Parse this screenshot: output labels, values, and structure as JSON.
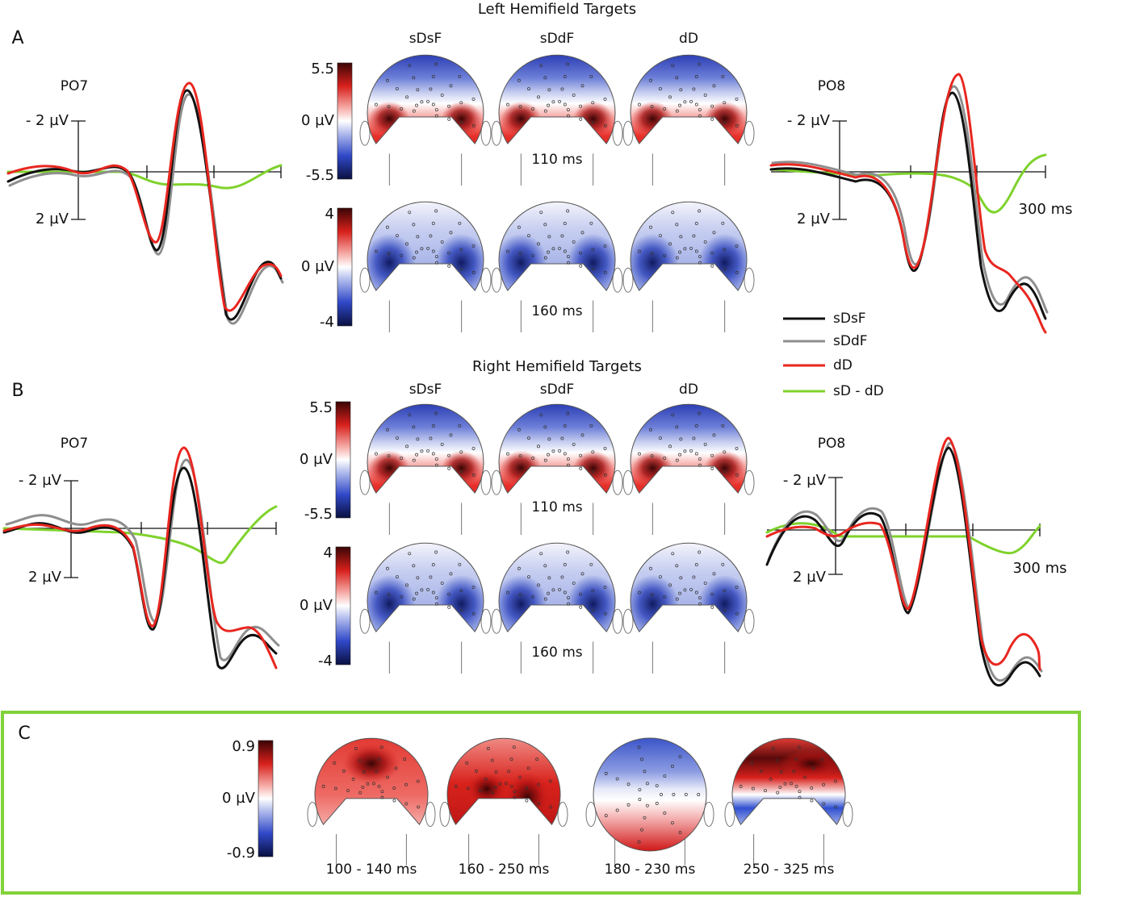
{
  "panel_a": {
    "label": "A",
    "title": "Left Hemifield Targets",
    "left_electrode": "PO7",
    "right_electrode": "PO8",
    "conditions": [
      "sDsF",
      "sDdF",
      "dD"
    ],
    "maps": [
      {
        "time": "110 ms",
        "scale": [
          "5.5",
          "0 µV",
          "-5.5"
        ]
      },
      {
        "time": "160 ms",
        "scale": [
          "4",
          "0 µV",
          "-4"
        ]
      }
    ],
    "left_axis": [
      "- 2 µV",
      "2 µV"
    ],
    "right_axis": [
      "- 2 µV",
      "2 µV",
      "300 ms"
    ]
  },
  "panel_b": {
    "label": "B",
    "title": "Right Hemifield Targets",
    "left_electrode": "PO7",
    "right_electrode": "PO8",
    "conditions": [
      "sDsF",
      "sDdF",
      "dD"
    ],
    "maps": [
      {
        "time": "110 ms",
        "scale": [
          "5.5",
          "0 µV",
          "-5.5"
        ]
      },
      {
        "time": "160 ms",
        "scale": [
          "4",
          "0 µV",
          "-4"
        ]
      }
    ],
    "left_axis": [
      "- 2 µV",
      "2 µV"
    ],
    "right_axis": [
      "- 2 µV",
      "2 µV",
      "300 ms"
    ]
  },
  "legend": [
    {
      "name": "sDsF",
      "color": "#111111"
    },
    {
      "name": "sDdF",
      "color": "#8e8e8e"
    },
    {
      "name": "dD",
      "color": "#e8261f"
    },
    {
      "name": "sD - dD",
      "color": "#7fd22c"
    }
  ],
  "panel_c": {
    "label": "C",
    "scale": [
      "0.9",
      "0 µV",
      "-0.9"
    ],
    "windows": [
      "100 - 140 ms",
      "160 - 250 ms",
      "180 - 230 ms",
      "250 - 325 ms"
    ]
  }
}
